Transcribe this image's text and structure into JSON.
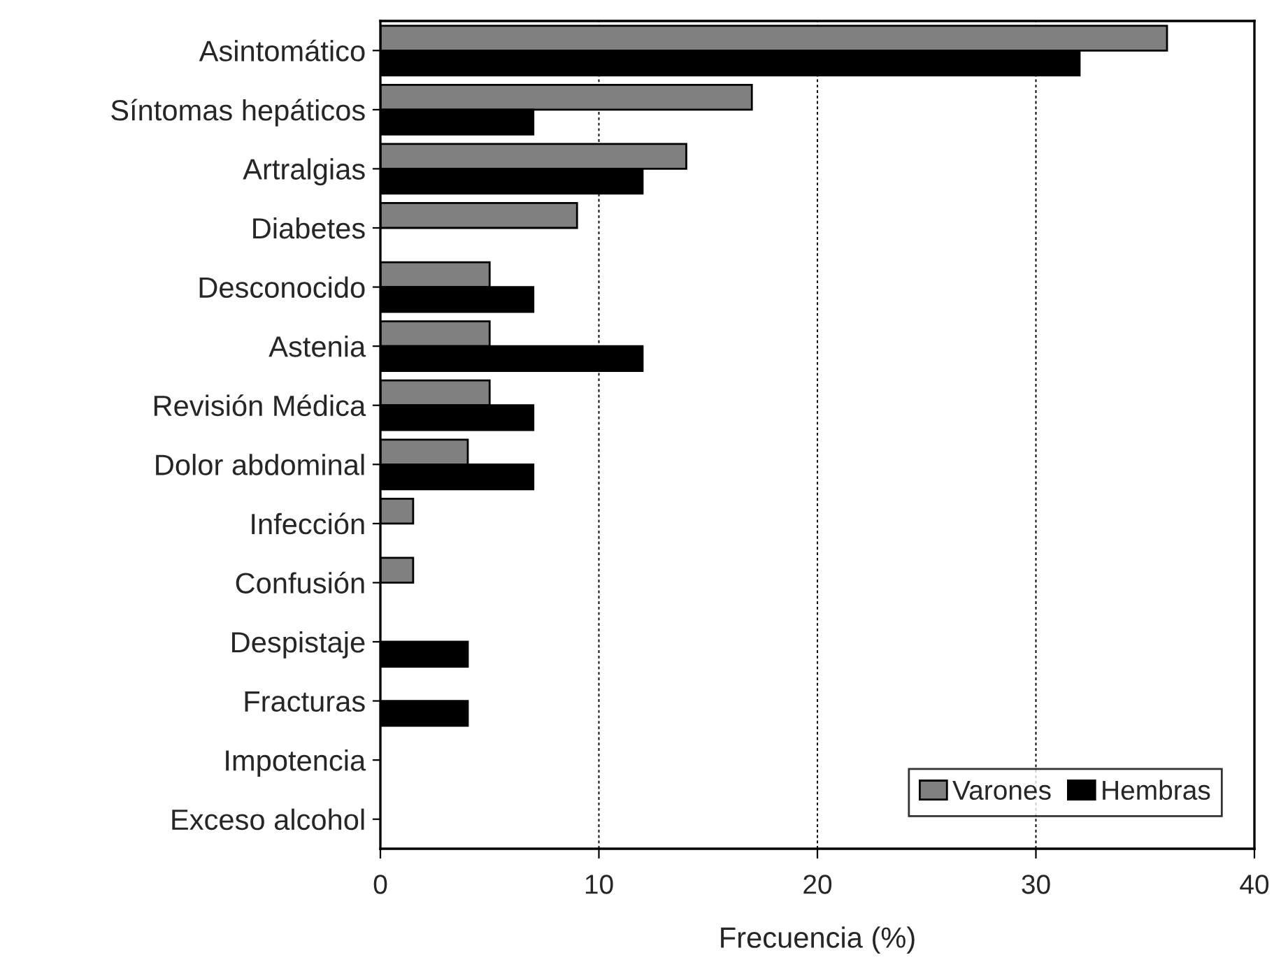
{
  "chart_data": {
    "type": "bar",
    "orientation": "horizontal",
    "xlabel": "Frecuencia (%)",
    "categories": [
      "Asintomático",
      "Síntomas hepáticos",
      "Artralgias",
      "Diabetes",
      "Desconocido",
      "Astenia",
      "Revisión Médica",
      "Dolor abdominal",
      "Infección",
      "Confusión",
      "Despistaje",
      "Fracturas",
      "Impotencia",
      "Exceso alcohol"
    ],
    "series": [
      {
        "name": "Varones",
        "color": "#808080",
        "values": [
          36,
          17,
          14,
          9,
          5,
          5,
          5,
          4,
          1.5,
          1.5,
          0,
          0,
          0,
          0
        ]
      },
      {
        "name": "Hembras",
        "color": "#000000",
        "values": [
          32,
          7,
          12,
          0,
          7,
          12,
          7,
          7,
          0,
          0,
          4,
          4,
          0,
          0
        ]
      }
    ],
    "xlim": [
      0,
      40
    ],
    "xticks": [
      0,
      10,
      20,
      30,
      40
    ],
    "grid": "x",
    "legend": "bottom right"
  }
}
